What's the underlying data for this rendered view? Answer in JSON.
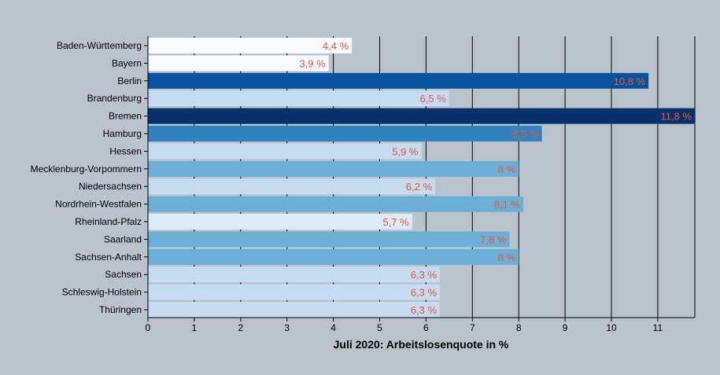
{
  "chart_data": {
    "type": "bar",
    "orientation": "horizontal",
    "categories": [
      "Baden-Württemberg",
      "Bayern",
      "Berlin",
      "Brandenburg",
      "Bremen",
      "Hamburg",
      "Hessen",
      "Mecklenburg-Vorpommern",
      "Niedersachsen",
      "Nordrhein-Westfalen",
      "Rheinland-Pfalz",
      "Saarland",
      "Sachsen-Anhalt",
      "Sachsen",
      "Schleswig-Holstein",
      "Thüringen"
    ],
    "values": [
      4.4,
      3.9,
      10.8,
      6.5,
      11.8,
      8.5,
      5.9,
      8,
      6.2,
      8.1,
      5.7,
      7.8,
      8,
      6.3,
      6.3,
      6.3
    ],
    "value_labels": [
      "4,4 %",
      "3,9 %",
      "10,8 %",
      "6,5 %",
      "11,8 %",
      "8,5 %",
      "5,9 %",
      "8 %",
      "6,2 %",
      "8,1 %",
      "5,7 %",
      "7,8 %",
      "8 %",
      "6,3 %",
      "6,3 %",
      "6,3 %"
    ],
    "bar_colors": [
      "#f7fbff",
      "#f7fbff",
      "#08519c",
      "#c6dbef",
      "#08306b",
      "#3182bd",
      "#c6dbef",
      "#6baed6",
      "#c6dbef",
      "#6baed6",
      "#deebf7",
      "#6baed6",
      "#6baed6",
      "#c6dbef",
      "#c6dbef",
      "#c6dbef"
    ],
    "xlabel": "Juli 2020: Arbeitslosenquote in %",
    "xticks": [
      "0",
      "1",
      "2",
      "3",
      "4",
      "5",
      "6",
      "7",
      "8",
      "9",
      "10",
      "11"
    ],
    "xlim": [
      0,
      11.8
    ],
    "grid": true,
    "value_label_color": "#e8583c",
    "gridline_color": "#000000"
  }
}
